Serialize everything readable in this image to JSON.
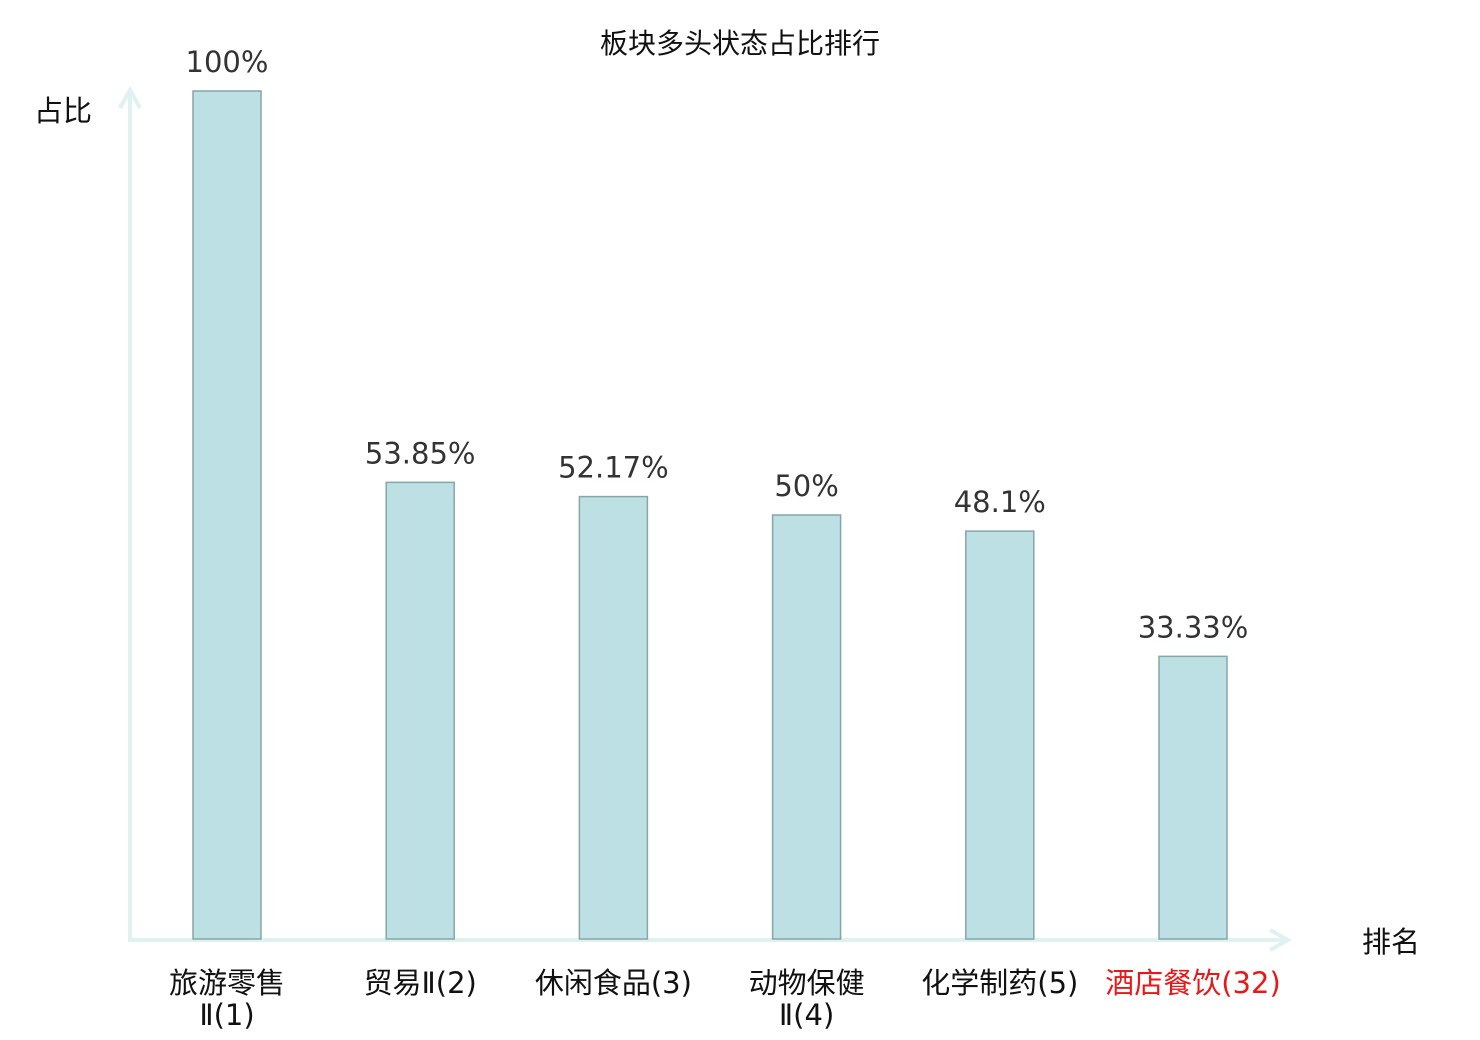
{
  "chart_data": {
    "type": "bar",
    "title": "板块多头状态占比排行",
    "xlabel": "排名",
    "ylabel": "占比",
    "categories": [
      "旅游零售Ⅱ(1)",
      "贸易Ⅱ(2)",
      "休闲食品(3)",
      "动物保健Ⅱ(4)",
      "化学制药(5)",
      "酒店餐饮(32)"
    ],
    "values": [
      100,
      53.85,
      52.17,
      50,
      48.1,
      33.33
    ],
    "value_labels": [
      "100%",
      "53.85%",
      "52.17%",
      "50%",
      "48.1%",
      "33.33%"
    ],
    "highlight_index": 5,
    "ylim": [
      0,
      100
    ],
    "grid": false,
    "colors": {
      "bar": "#bce0e3",
      "bar_edge": "#86a6a8",
      "axis": "#dff2ef",
      "highlight": "#e81818"
    }
  }
}
